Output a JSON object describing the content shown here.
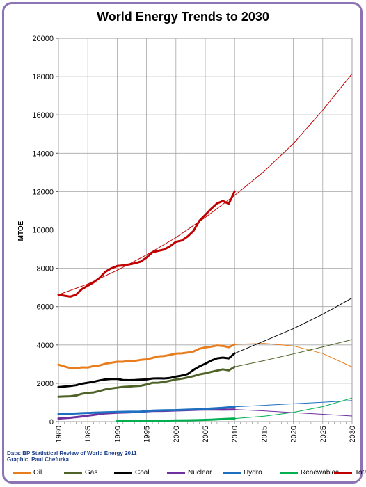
{
  "chart_data": {
    "type": "line",
    "title": "World Energy Trends to 2030",
    "ylabel": "MTOE",
    "xlabel": "",
    "xlim": [
      1980,
      2030
    ],
    "ylim": [
      0,
      20000
    ],
    "x_ticks": [
      1980,
      1985,
      1990,
      1995,
      2000,
      2005,
      2010,
      2015,
      2020,
      2025,
      2030
    ],
    "y_ticks": [
      0,
      2000,
      4000,
      6000,
      8000,
      10000,
      12000,
      14000,
      16000,
      18000,
      20000
    ],
    "grid": true,
    "legend_position": "bottom",
    "source_lines": [
      "Data: BP Statistical Review of World Energy 2011",
      "Graphic: Paul Chefurka"
    ],
    "series": [
      {
        "name": "Oil",
        "color": "#e87d1e",
        "x": [
          1980,
          1981,
          1982,
          1983,
          1984,
          1985,
          1986,
          1987,
          1988,
          1989,
          1990,
          1991,
          1992,
          1993,
          1994,
          1995,
          1996,
          1997,
          1998,
          1999,
          2000,
          2001,
          2002,
          2003,
          2004,
          2005,
          2006,
          2007,
          2008,
          2009,
          2010
        ],
        "values": [
          2970,
          2880,
          2800,
          2780,
          2830,
          2820,
          2900,
          2930,
          3020,
          3070,
          3120,
          3120,
          3180,
          3170,
          3220,
          3250,
          3320,
          3400,
          3420,
          3480,
          3550,
          3560,
          3600,
          3660,
          3800,
          3870,
          3910,
          3970,
          3950,
          3880,
          4030
        ],
        "trend_x": [
          2010,
          2015,
          2020,
          2025,
          2030
        ],
        "trend": [
          4030,
          4080,
          3950,
          3550,
          2850
        ]
      },
      {
        "name": "Gas",
        "color": "#4f6228",
        "x": [
          1980,
          1981,
          1982,
          1983,
          1984,
          1985,
          1986,
          1987,
          1988,
          1989,
          1990,
          1991,
          1992,
          1993,
          1994,
          1995,
          1996,
          1997,
          1998,
          1999,
          2000,
          2001,
          2002,
          2003,
          2004,
          2005,
          2006,
          2007,
          2008,
          2009,
          2010
        ],
        "values": [
          1300,
          1310,
          1320,
          1360,
          1450,
          1500,
          1520,
          1600,
          1680,
          1730,
          1770,
          1810,
          1830,
          1850,
          1870,
          1940,
          2020,
          2030,
          2070,
          2130,
          2200,
          2240,
          2300,
          2370,
          2460,
          2520,
          2590,
          2660,
          2730,
          2670,
          2860
        ],
        "trend_x": [
          2010,
          2015,
          2020,
          2025,
          2030
        ],
        "trend": [
          2860,
          3180,
          3530,
          3900,
          4280
        ]
      },
      {
        "name": "Coal",
        "color": "#000000",
        "x": [
          1980,
          1981,
          1982,
          1983,
          1984,
          1985,
          1986,
          1987,
          1988,
          1989,
          1990,
          1991,
          1992,
          1993,
          1994,
          1995,
          1996,
          1997,
          1998,
          1999,
          2000,
          2001,
          2002,
          2003,
          2004,
          2005,
          2006,
          2007,
          2008,
          2009,
          2010
        ],
        "values": [
          1800,
          1830,
          1860,
          1900,
          1980,
          2030,
          2080,
          2150,
          2200,
          2220,
          2230,
          2170,
          2160,
          2170,
          2190,
          2200,
          2250,
          2260,
          2250,
          2280,
          2350,
          2400,
          2480,
          2700,
          2880,
          3020,
          3180,
          3300,
          3340,
          3300,
          3560
        ],
        "trend_x": [
          2010,
          2015,
          2020,
          2025,
          2030
        ],
        "trend": [
          3560,
          4200,
          4850,
          5600,
          6450
        ]
      },
      {
        "name": "Nuclear",
        "color": "#7030a0",
        "x": [
          1980,
          1982,
          1984,
          1986,
          1988,
          1990,
          1992,
          1994,
          1996,
          1998,
          2000,
          2002,
          2004,
          2006,
          2008,
          2010
        ],
        "values": [
          160,
          200,
          270,
          350,
          430,
          460,
          480,
          510,
          550,
          560,
          580,
          600,
          620,
          630,
          620,
          630
        ],
        "trend_x": [
          2010,
          2015,
          2020,
          2025,
          2030
        ],
        "trend": [
          630,
          560,
          470,
          380,
          290
        ]
      },
      {
        "name": "Hydro",
        "color": "#1f6fc0",
        "x": [
          1980,
          1982,
          1984,
          1986,
          1988,
          1990,
          1992,
          1994,
          1996,
          1998,
          2000,
          2002,
          2004,
          2006,
          2008,
          2010
        ],
        "values": [
          390,
          410,
          440,
          460,
          480,
          500,
          510,
          520,
          570,
          590,
          600,
          620,
          640,
          680,
          720,
          770
        ],
        "trend_x": [
          2010,
          2015,
          2020,
          2025,
          2030
        ],
        "trend": [
          770,
          850,
          930,
          1010,
          1100
        ]
      },
      {
        "name": "Renewables",
        "color": "#00b050",
        "x": [
          1990,
          1992,
          1994,
          1996,
          1998,
          2000,
          2002,
          2004,
          2006,
          2008,
          2010
        ],
        "values": [
          30,
          35,
          40,
          45,
          50,
          60,
          70,
          80,
          100,
          130,
          160
        ],
        "trend_x": [
          2010,
          2015,
          2020,
          2025,
          2030
        ],
        "trend": [
          160,
          280,
          480,
          780,
          1230
        ]
      },
      {
        "name": "Total",
        "color": "#c00000",
        "x": [
          1980,
          1981,
          1982,
          1983,
          1984,
          1985,
          1986,
          1987,
          1988,
          1989,
          1990,
          1991,
          1992,
          1993,
          1994,
          1995,
          1996,
          1997,
          1998,
          1999,
          2000,
          2001,
          2002,
          2003,
          2004,
          2005,
          2006,
          2007,
          2008,
          2009,
          2010
        ],
        "values": [
          6620,
          6570,
          6520,
          6620,
          6920,
          7090,
          7270,
          7500,
          7820,
          8000,
          8120,
          8150,
          8200,
          8260,
          8350,
          8560,
          8840,
          8910,
          8980,
          9150,
          9380,
          9450,
          9660,
          9950,
          10480,
          10780,
          11100,
          11380,
          11510,
          11360,
          12010
        ],
        "trend_x": [
          1980,
          1985,
          1990,
          1995,
          2000,
          2005,
          2010,
          2015,
          2020,
          2025,
          2030
        ],
        "trend": [
          6620,
          7180,
          7900,
          8700,
          9600,
          10650,
          11800,
          13050,
          14500,
          16250,
          18150
        ]
      }
    ]
  }
}
